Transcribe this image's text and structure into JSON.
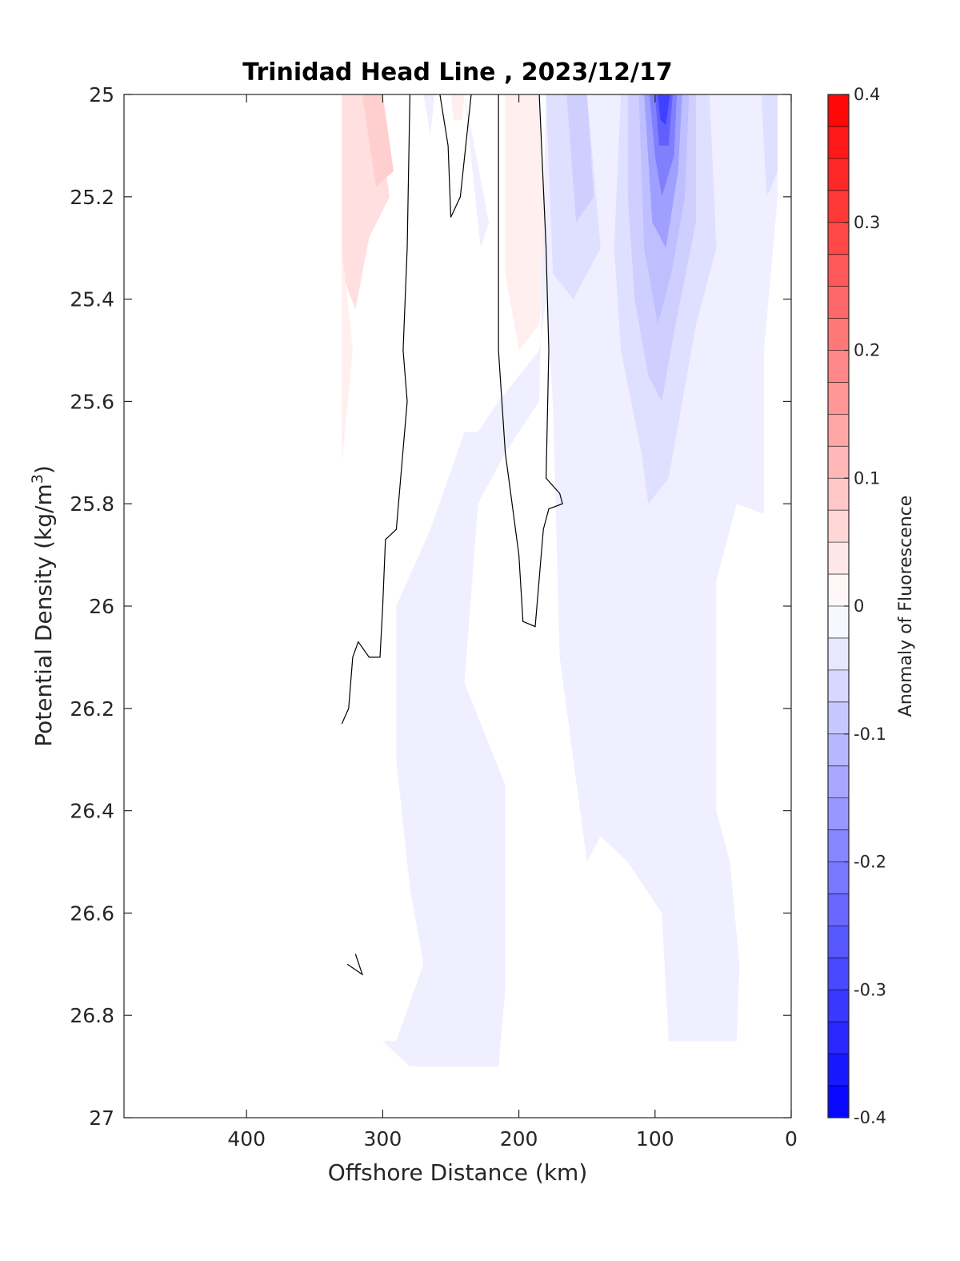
{
  "chart_data": {
    "type": "contour",
    "title": "Trinidad Head Line , 2023/12/17",
    "xlabel": "Offshore Distance (km)",
    "ylabel": "Potential Density (kg/m",
    "ylabel_sup": "3",
    "ylabel_suffix": ")",
    "x_reversed": true,
    "y_reversed": true,
    "xlim": [
      490,
      0
    ],
    "ylim": [
      25,
      27
    ],
    "xticks": [
      400,
      300,
      200,
      100,
      0
    ],
    "xtick_labels": [
      "400",
      "300",
      "200",
      "100",
      "0"
    ],
    "yticks": [
      25,
      25.2,
      25.4,
      25.6,
      25.8,
      26,
      26.2,
      26.4,
      26.6,
      26.8,
      27
    ],
    "ytick_labels": [
      "25",
      "25.2",
      "25.4",
      "25.6",
      "25.8",
      "26",
      "26.2",
      "26.4",
      "26.6",
      "26.8",
      "27"
    ],
    "colorbar": {
      "label": "Anomaly of Fluorescence",
      "clim": [
        -0.4,
        0.4
      ],
      "ticks": [
        0.4,
        0.3,
        0.2,
        0.1,
        0,
        -0.1,
        -0.2,
        -0.3,
        -0.4
      ],
      "tick_labels": [
        "0.4",
        "0.3",
        "0.2",
        "0.1",
        "0",
        "-0.1",
        "-0.2",
        "-0.3",
        "-0.4"
      ],
      "levels": 32,
      "colormap": "blue-white-red",
      "min_color": "#0000ff",
      "mid_color": "#ffffff",
      "max_color": "#ff0000"
    },
    "filled_regions": [
      {
        "value": 0.05,
        "points": [
          [
            330,
            25
          ],
          [
            305,
            25
          ],
          [
            295,
            25.2
          ],
          [
            310,
            25.28
          ],
          [
            320,
            25.42
          ],
          [
            330,
            25.35
          ]
        ]
      },
      {
        "value": 0.075,
        "points": [
          [
            315,
            25
          ],
          [
            300,
            25
          ],
          [
            292,
            25.15
          ],
          [
            305,
            25.18
          ]
        ]
      },
      {
        "value": 0.025,
        "points": [
          [
            330,
            25.3
          ],
          [
            322,
            25.5
          ],
          [
            330,
            25.72
          ]
        ]
      },
      {
        "value": 0.025,
        "points": [
          [
            250,
            25
          ],
          [
            240,
            25
          ],
          [
            242,
            25.05
          ],
          [
            248,
            25.05
          ]
        ]
      },
      {
        "value": 0.025,
        "points": [
          [
            210,
            25
          ],
          [
            185,
            25
          ],
          [
            180,
            25.3
          ],
          [
            185,
            25.45
          ],
          [
            200,
            25.5
          ],
          [
            210,
            25.35
          ]
        ]
      },
      {
        "value": -0.025,
        "points": [
          [
            270,
            25
          ],
          [
            262,
            25
          ],
          [
            265,
            25.08
          ]
        ]
      },
      {
        "value": -0.025,
        "points": [
          [
            240,
            25
          ],
          [
            232,
            25.2
          ],
          [
            228,
            25.3
          ],
          [
            222,
            25.25
          ]
        ]
      },
      {
        "value": -0.025,
        "points": [
          [
            180,
            25
          ],
          [
            10,
            25
          ],
          [
            10,
            25.2
          ],
          [
            20,
            25.5
          ],
          [
            20,
            25.82
          ],
          [
            40,
            25.8
          ],
          [
            55,
            25.95
          ],
          [
            55,
            26.4
          ],
          [
            45,
            26.5
          ],
          [
            38,
            26.7
          ],
          [
            40,
            26.85
          ],
          [
            90,
            26.85
          ],
          [
            95,
            26.6
          ],
          [
            120,
            26.5
          ],
          [
            140,
            26.45
          ],
          [
            150,
            26.5
          ],
          [
            170,
            26.1
          ],
          [
            175,
            25.6
          ],
          [
            180,
            25.4
          ],
          [
            185,
            25.5
          ],
          [
            200,
            25.55
          ],
          [
            215,
            25.6
          ],
          [
            230,
            25.66
          ],
          [
            240,
            25.66
          ],
          [
            265,
            25.85
          ],
          [
            290,
            26.0
          ],
          [
            290,
            26.3
          ],
          [
            280,
            26.55
          ],
          [
            270,
            26.7
          ],
          [
            290,
            26.85
          ],
          [
            300,
            26.85
          ],
          [
            280,
            26.9
          ],
          [
            215,
            26.9
          ],
          [
            210,
            26.75
          ],
          [
            210,
            26.35
          ],
          [
            240,
            26.15
          ],
          [
            230,
            25.8
          ],
          [
            210,
            25.7
          ],
          [
            185,
            25.6
          ]
        ]
      },
      {
        "value": -0.05,
        "points": [
          [
            180,
            25
          ],
          [
            150,
            25
          ],
          [
            140,
            25.3
          ],
          [
            160,
            25.4
          ],
          [
            175,
            25.35
          ]
        ]
      },
      {
        "value": -0.05,
        "points": [
          [
            125,
            25
          ],
          [
            60,
            25
          ],
          [
            55,
            25.3
          ],
          [
            70,
            25.45
          ],
          [
            80,
            25.6
          ],
          [
            90,
            25.75
          ],
          [
            105,
            25.8
          ],
          [
            110,
            25.7
          ],
          [
            125,
            25.5
          ],
          [
            130,
            25.3
          ]
        ]
      },
      {
        "value": -0.075,
        "points": [
          [
            165,
            25
          ],
          [
            150,
            25
          ],
          [
            145,
            25.2
          ],
          [
            158,
            25.25
          ]
        ]
      },
      {
        "value": -0.075,
        "points": [
          [
            120,
            25
          ],
          [
            70,
            25
          ],
          [
            70,
            25.25
          ],
          [
            85,
            25.45
          ],
          [
            95,
            25.6
          ],
          [
            105,
            25.55
          ],
          [
            115,
            25.4
          ],
          [
            120,
            25.2
          ]
        ]
      },
      {
        "value": -0.1,
        "points": [
          [
            112,
            25
          ],
          [
            75,
            25
          ],
          [
            78,
            25.2
          ],
          [
            88,
            25.35
          ],
          [
            98,
            25.45
          ],
          [
            108,
            25.3
          ]
        ]
      },
      {
        "value": -0.15,
        "points": [
          [
            108,
            25
          ],
          [
            80,
            25
          ],
          [
            83,
            25.15
          ],
          [
            92,
            25.3
          ],
          [
            102,
            25.25
          ]
        ]
      },
      {
        "value": -0.2,
        "points": [
          [
            104,
            25
          ],
          [
            84,
            25
          ],
          [
            86,
            25.12
          ],
          [
            95,
            25.2
          ],
          [
            100,
            25.12
          ]
        ]
      },
      {
        "value": -0.25,
        "points": [
          [
            100,
            25
          ],
          [
            87,
            25
          ],
          [
            90,
            25.1
          ],
          [
            97,
            25.1
          ]
        ]
      },
      {
        "value": -0.3,
        "points": [
          [
            98,
            25
          ],
          [
            89,
            25
          ],
          [
            92,
            25.06
          ],
          [
            96,
            25.05
          ]
        ]
      },
      {
        "value": -0.05,
        "points": [
          [
            22,
            25
          ],
          [
            10,
            25
          ],
          [
            10,
            25.15
          ],
          [
            18,
            25.2
          ]
        ]
      }
    ],
    "contour_lines": [
      {
        "value": 0,
        "points": [
          [
            280,
            25
          ],
          [
            282,
            25.3
          ],
          [
            285,
            25.5
          ],
          [
            282,
            25.6
          ],
          [
            290,
            25.85
          ],
          [
            298,
            25.87
          ],
          [
            300,
            26.0
          ],
          [
            302,
            26.1
          ],
          [
            310,
            26.1
          ],
          [
            318,
            26.07
          ],
          [
            322,
            26.1
          ],
          [
            325,
            26.2
          ],
          [
            330,
            26.23
          ]
        ]
      },
      {
        "value": 0,
        "points": [
          [
            235,
            25
          ],
          [
            243,
            25.2
          ],
          [
            250,
            25.24
          ],
          [
            252,
            25.1
          ],
          [
            258,
            25
          ]
        ]
      },
      {
        "value": 0,
        "points": [
          [
            215,
            25
          ],
          [
            215,
            25.5
          ],
          [
            210,
            25.7
          ],
          [
            200,
            25.9
          ],
          [
            197,
            26.03
          ],
          [
            188,
            26.04
          ],
          [
            182,
            25.85
          ],
          [
            178,
            25.81
          ],
          [
            168,
            25.8
          ],
          [
            170,
            25.78
          ],
          [
            180,
            25.75
          ],
          [
            178,
            25.5
          ],
          [
            180,
            25.3
          ],
          [
            185,
            25
          ]
        ]
      },
      {
        "value": 0,
        "points": [
          [
            326,
            26.7
          ],
          [
            315,
            26.72
          ],
          [
            320,
            26.68
          ]
        ]
      }
    ]
  }
}
